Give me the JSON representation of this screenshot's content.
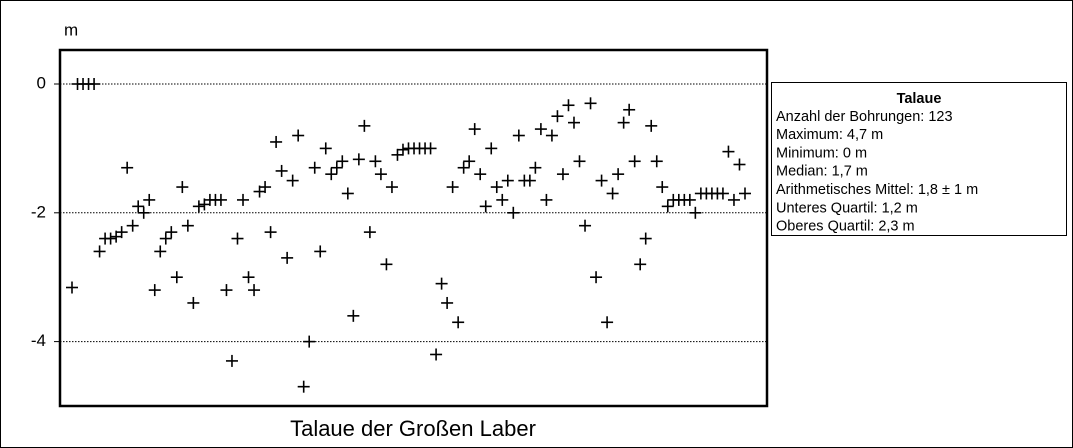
{
  "chart_data": {
    "type": "scatter",
    "title": "Talaue der Großen Laber",
    "ylabel": "m",
    "color": "#000000",
    "ylim": [
      -5,
      0.5
    ],
    "yticks": [
      0,
      -2,
      -4
    ],
    "grid": true,
    "values": [
      -3.16,
      0,
      0,
      0,
      0,
      -2.6,
      -2.4,
      -2.4,
      -2.37,
      -2.3,
      -1.3,
      -2.2,
      -1.9,
      -2.0,
      -1.8,
      -3.2,
      -2.6,
      -2.4,
      -2.3,
      -3.0,
      -1.6,
      -2.2,
      -3.4,
      -1.9,
      -1.87,
      -1.8,
      -1.8,
      -1.8,
      -3.2,
      -4.3,
      -2.4,
      -1.8,
      -3.0,
      -3.2,
      -1.67,
      -1.6,
      -2.3,
      -0.9,
      -1.35,
      -2.7,
      -1.5,
      -0.8,
      -4.7,
      -4.0,
      -1.3,
      -2.6,
      -1.0,
      -1.4,
      -1.3,
      -1.2,
      -1.7,
      -3.6,
      -1.17,
      -0.65,
      -2.3,
      -1.2,
      -1.4,
      -2.8,
      -1.6,
      -1.1,
      -1.02,
      -1.0,
      -1.0,
      -1.0,
      -1.0,
      -1.0,
      -4.2,
      -3.1,
      -3.4,
      -1.6,
      -3.7,
      -1.3,
      -1.2,
      -0.7,
      -1.4,
      -1.9,
      -1.0,
      -1.6,
      -1.8,
      -1.5,
      -2.0,
      -0.8,
      -1.5,
      -1.5,
      -1.3,
      -0.7,
      -1.8,
      -0.8,
      -0.5,
      -1.4,
      -0.33,
      -0.6,
      -1.2,
      -2.2,
      -0.3,
      -3.0,
      -1.5,
      -3.7,
      -1.7,
      -1.4,
      -0.6,
      -0.4,
      -1.2,
      -2.8,
      -2.4,
      -0.65,
      -1.2,
      -1.6,
      -1.9,
      -1.8,
      -1.8,
      -1.8,
      -1.8,
      -2.0,
      -1.7,
      -1.7,
      -1.7,
      -1.7,
      -1.7,
      -1.05,
      -1.8,
      -1.25,
      -1.7
    ],
    "stats": {
      "title": "Talaue",
      "lines": [
        "Anzahl der Bohrungen: 123",
        "Maximum: 4,7 m",
        "Minimum:  0 m",
        "Median: 1,7 m",
        "Arithmetisches Mittel: 1,8 ± 1 m",
        "Unteres Quartil: 1,2 m",
        "Oberes Quartil: 2,3 m"
      ]
    }
  }
}
